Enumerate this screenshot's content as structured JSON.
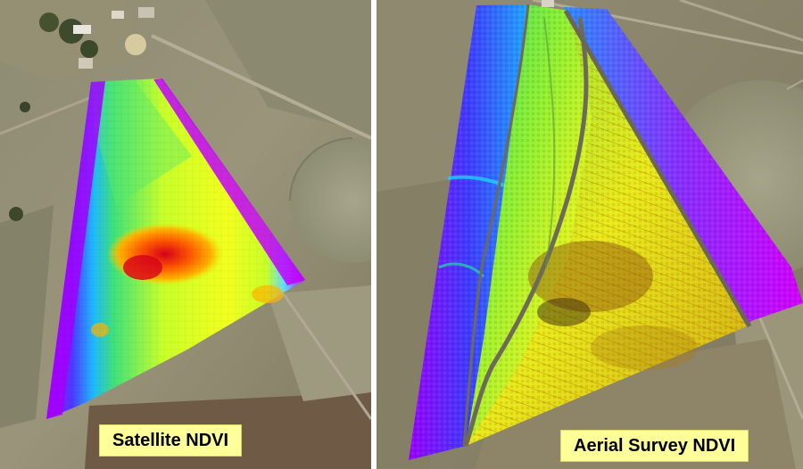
{
  "panels": [
    {
      "caption": "Satellite NDVI",
      "description_icon": "ndvi-overlay"
    },
    {
      "caption": "Aerial Survey NDVI",
      "description_icon": "ndvi-overlay"
    }
  ],
  "colors": {
    "ndvi_low": "#c000ff",
    "ndvi_low_mid": "#3a36ff",
    "ndvi_mid": "#32e06e",
    "ndvi_high": "#e6ff1e",
    "ndvi_peak": "#ff7a00",
    "ndvi_max": "#d8001a",
    "caption_bg": "#ffff99",
    "terrain": "#8d8a6c"
  }
}
